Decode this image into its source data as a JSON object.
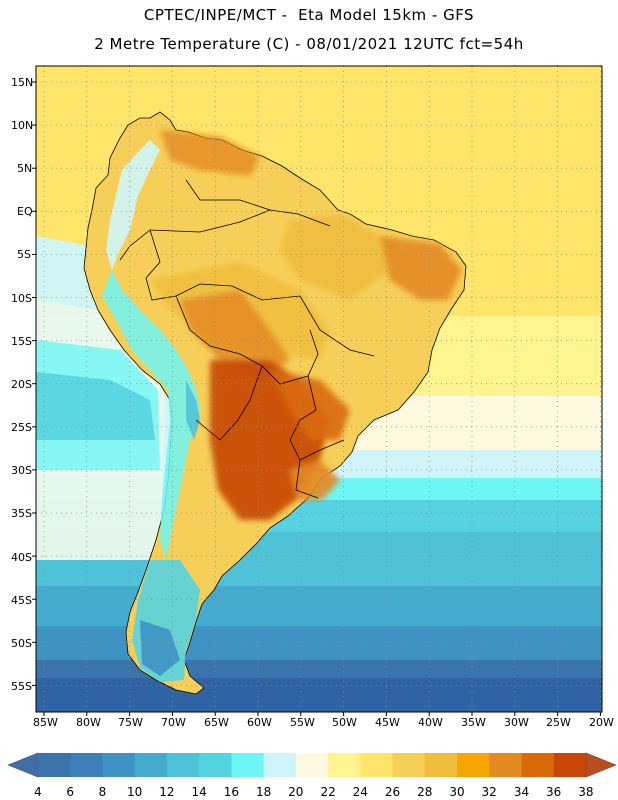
{
  "header": {
    "title_line1": "CPTEC/INPE/MCT -  Eta Model 15km - GFS",
    "title_line2": "2 Metre Temperature (C) - 08/01/2021 12UTC fct=54h"
  },
  "map": {
    "lat_labels": [
      "15N",
      "10N",
      "5N",
      "EQ",
      "5S",
      "10S",
      "15S",
      "20S",
      "25S",
      "30S",
      "35S",
      "40S",
      "45S",
      "50S",
      "55S"
    ],
    "lon_labels": [
      "85W",
      "80W",
      "75W",
      "70W",
      "65W",
      "60W",
      "55W",
      "50W",
      "45W",
      "40W",
      "35W",
      "30W",
      "25W",
      "20W"
    ]
  },
  "colorbar": {
    "labels": [
      "4",
      "6",
      "8",
      "10",
      "12",
      "14",
      "16",
      "18",
      "20",
      "22",
      "24",
      "26",
      "28",
      "30",
      "32",
      "34",
      "36",
      "38"
    ],
    "colors": [
      "#3b73ad",
      "#3d7fb8",
      "#3f92c4",
      "#44aace",
      "#4fc2d8",
      "#56d3e0",
      "#6ef6f6",
      "#cff5fa",
      "#fffadf",
      "#fff490",
      "#ffe66a",
      "#f6cf58",
      "#f0bd3d",
      "#f5a700",
      "#e48a22",
      "#d96a0a",
      "#c64606"
    ],
    "low_color": "#3f6fa6",
    "high_color": "#bb4d1b"
  }
}
